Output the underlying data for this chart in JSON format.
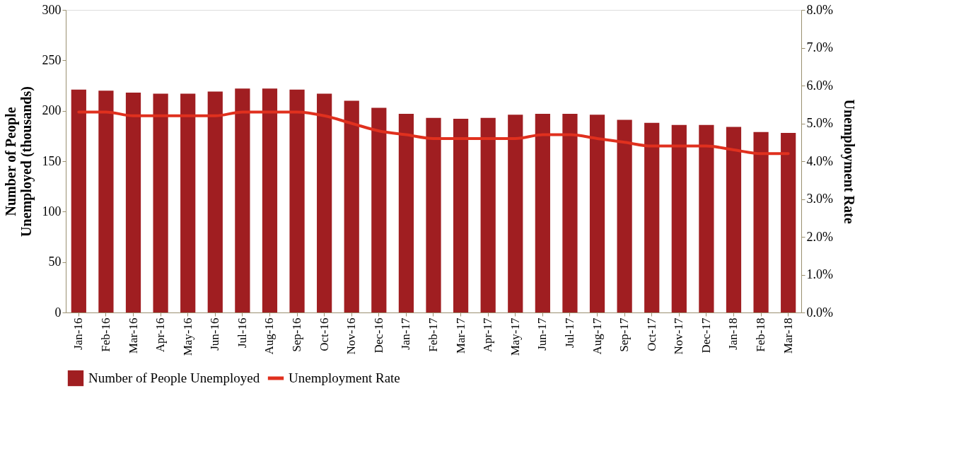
{
  "chart_data": {
    "type": "bar",
    "categories": [
      "Jan-16",
      "Feb-16",
      "Mar-16",
      "Apr-16",
      "May-16",
      "Jun-16",
      "Jul-16",
      "Aug-16",
      "Sep-16",
      "Oct-16",
      "Nov-16",
      "Dec-16",
      "Jan-17",
      "Feb-17",
      "Mar-17",
      "Apr-17",
      "May-17",
      "Jun-17",
      "Jul-17",
      "Aug-17",
      "Sep-17",
      "Oct-17",
      "Nov-17",
      "Dec-17",
      "Jan-18",
      "Feb-18",
      "Mar-18"
    ],
    "ylabel": "Number of People Unemployed (thousands)",
    "y2label": "Unemployment Rate",
    "ylim": [
      0,
      300
    ],
    "yticks": [
      0,
      50,
      100,
      150,
      200,
      250,
      300
    ],
    "y2lim": [
      0,
      8
    ],
    "y2ticks": [
      {
        "value": 0,
        "label": "0.0%"
      },
      {
        "value": 1,
        "label": "1.0%"
      },
      {
        "value": 2,
        "label": "2.0%"
      },
      {
        "value": 3,
        "label": "3.0%"
      },
      {
        "value": 4,
        "label": "4.0%"
      },
      {
        "value": 5,
        "label": "5.0%"
      },
      {
        "value": 6,
        "label": "6.0%"
      },
      {
        "value": 7,
        "label": "7.0%"
      },
      {
        "value": 8,
        "label": "8.0%"
      }
    ],
    "series": [
      {
        "name": "Number of People Unemployed",
        "color": "#a01e21",
        "values": [
          221,
          220,
          218,
          217,
          217,
          219,
          222,
          222,
          221,
          217,
          210,
          203,
          197,
          193,
          192,
          193,
          196,
          197,
          197,
          196,
          191,
          188,
          186,
          186,
          184,
          179,
          178
        ]
      },
      {
        "name": "Unemployment Rate",
        "type": "line",
        "axis": "y2",
        "color": "#e0301e",
        "values": [
          5.3,
          5.3,
          5.2,
          5.2,
          5.2,
          5.2,
          5.3,
          5.3,
          5.3,
          5.2,
          5.0,
          4.8,
          4.7,
          4.6,
          4.6,
          4.6,
          4.6,
          4.7,
          4.7,
          4.6,
          4.5,
          4.4,
          4.4,
          4.4,
          4.3,
          4.2,
          4.2
        ]
      }
    ],
    "legend": "bottom",
    "grid": false
  }
}
